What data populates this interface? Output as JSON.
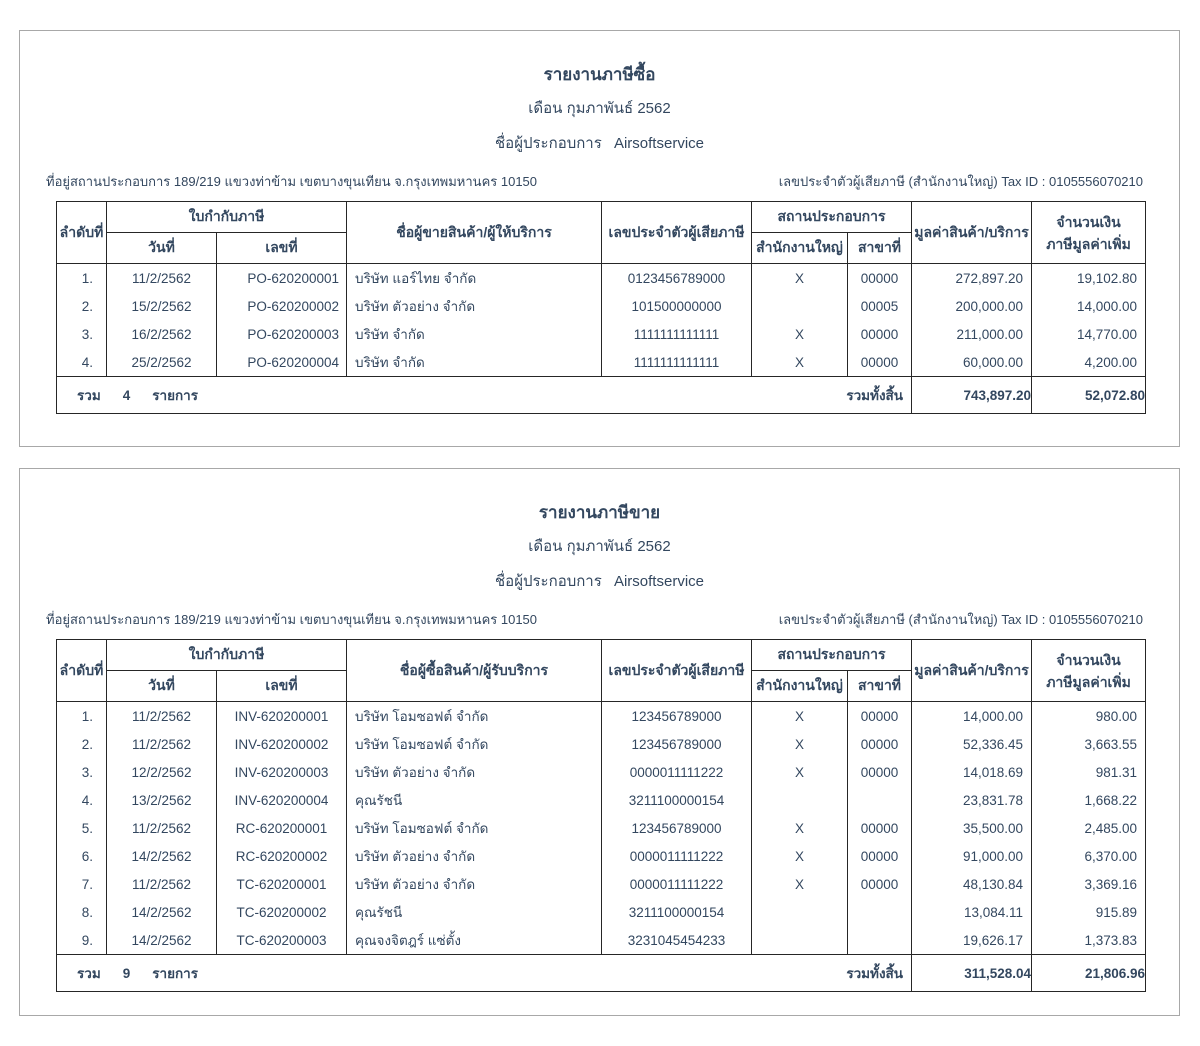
{
  "colors": {
    "text": "#33475f",
    "table_border": "#262626",
    "panel_border": "#a8a8a8",
    "background": "#ffffff"
  },
  "reports": [
    {
      "title": "รายงานภาษีซื้อ",
      "subtitle": "เดือน กุมภาพันธ์ 2562",
      "operator_label": "ชื่อผู้ประกอบการ",
      "operator_name": "Airsoftservice",
      "address": "ที่อยู่สถานประกอบการ 189/219  แขวงท่าข้าม เขตบางขุนเทียน จ.กรุงเทพมหานคร 10150",
      "tax_id_line": "เลขประจำตัวผู้เสียภาษี  (สำนักงานใหญ่) Tax ID : 0105556070210",
      "headers": {
        "no": "ลำดับที่",
        "invoice_group": "ใบกำกับภาษี",
        "date": "วันที่",
        "number": "เลขที่",
        "name": "ชื่อผู้ขายสินค้า/ผู้ให้บริการ",
        "tax_id": "เลขประจำตัวผู้เสียภาษี",
        "establishment_group": "สถานประกอบการ",
        "head_office": "สำนักงานใหญ่",
        "branch": "สาขาที่",
        "value": "มูลค่าสินค้า/บริการ",
        "vat_line1": "จำนวนเงิน",
        "vat_line2": "ภาษีมูลค่าเพิ่ม"
      },
      "rows": [
        {
          "no": "1.",
          "date": "11/2/2562",
          "number": "PO-620200001",
          "name": "บริษัท แอร์ไทย จำกัด",
          "tax_id": "0123456789000",
          "head_office": "X",
          "branch": "00000",
          "value": "272,897.20",
          "vat": "19,102.80"
        },
        {
          "no": "2.",
          "date": "15/2/2562",
          "number": "PO-620200002",
          "name": "บริษัท ตัวอย่าง จำกัด",
          "tax_id": "101500000000",
          "head_office": "",
          "branch": "00005",
          "value": "200,000.00",
          "vat": "14,000.00"
        },
        {
          "no": "3.",
          "date": "16/2/2562",
          "number": "PO-620200003",
          "name": "บริษัท จำกัด",
          "tax_id": "1111111111111",
          "head_office": "X",
          "branch": "00000",
          "value": "211,000.00",
          "vat": "14,770.00"
        },
        {
          "no": "4.",
          "date": "25/2/2562",
          "number": "PO-620200004",
          "name": "บริษัท จำกัด",
          "tax_id": "1111111111111",
          "head_office": "X",
          "branch": "00000",
          "value": "60,000.00",
          "vat": "4,200.00"
        }
      ],
      "summary": {
        "total_label": "รวม",
        "total_count": "4",
        "items_label": "รายการ",
        "grand_total_label": "รวมทั้งสิ้น",
        "total_value": "743,897.20",
        "total_vat": "52,072.80"
      }
    },
    {
      "title": "รายงานภาษีขาย",
      "subtitle": "เดือน กุมภาพันธ์ 2562",
      "operator_label": "ชื่อผู้ประกอบการ",
      "operator_name": "Airsoftservice",
      "address": "ที่อยู่สถานประกอบการ 189/219  แขวงท่าข้าม เขตบางขุนเทียน จ.กรุงเทพมหานคร 10150",
      "tax_id_line": "เลขประจำตัวผู้เสียภาษี  (สำนักงานใหญ่) Tax ID : 0105556070210",
      "headers": {
        "no": "ลำดับที่",
        "invoice_group": "ใบกำกับภาษี",
        "date": "วันที่",
        "number": "เลขที่",
        "name": "ชื่อผู้ซื้อสินค้า/ผู้รับบริการ",
        "tax_id": "เลขประจำตัวผู้เสียภาษี",
        "establishment_group": "สถานประกอบการ",
        "head_office": "สำนักงานใหญ่",
        "branch": "สาขาที่",
        "value": "มูลค่าสินค้า/บริการ",
        "vat_line1": "จำนวนเงิน",
        "vat_line2": "ภาษีมูลค่าเพิ่ม"
      },
      "rows": [
        {
          "no": "1.",
          "date": "11/2/2562",
          "number": "INV-620200001",
          "name": "บริษัท โอมซอฟต์ จำกัด",
          "tax_id": "123456789000",
          "head_office": "X",
          "branch": "00000",
          "value": "14,000.00",
          "vat": "980.00"
        },
        {
          "no": "2.",
          "date": "11/2/2562",
          "number": "INV-620200002",
          "name": "บริษัท โอมซอฟต์ จำกัด",
          "tax_id": "123456789000",
          "head_office": "X",
          "branch": "00000",
          "value": "52,336.45",
          "vat": "3,663.55"
        },
        {
          "no": "3.",
          "date": "12/2/2562",
          "number": "INV-620200003",
          "name": "บริษัท ตัวอย่าง จำกัด",
          "tax_id": "0000011111222",
          "head_office": "X",
          "branch": "00000",
          "value": "14,018.69",
          "vat": "981.31"
        },
        {
          "no": "4.",
          "date": "13/2/2562",
          "number": "INV-620200004",
          "name": "คุณรัชนี",
          "tax_id": "3211100000154",
          "head_office": "",
          "branch": "",
          "value": "23,831.78",
          "vat": "1,668.22"
        },
        {
          "no": "5.",
          "date": "11/2/2562",
          "number": "RC-620200001",
          "name": "บริษัท โอมซอฟต์ จำกัด",
          "tax_id": "123456789000",
          "head_office": "X",
          "branch": "00000",
          "value": "35,500.00",
          "vat": "2,485.00"
        },
        {
          "no": "6.",
          "date": "14/2/2562",
          "number": "RC-620200002",
          "name": "บริษัท ตัวอย่าง จำกัด",
          "tax_id": "0000011111222",
          "head_office": "X",
          "branch": "00000",
          "value": "91,000.00",
          "vat": "6,370.00"
        },
        {
          "no": "7.",
          "date": "11/2/2562",
          "number": "TC-620200001",
          "name": "บริษัท ตัวอย่าง จำกัด",
          "tax_id": "0000011111222",
          "head_office": "X",
          "branch": "00000",
          "value": "48,130.84",
          "vat": "3,369.16"
        },
        {
          "no": "8.",
          "date": "14/2/2562",
          "number": "TC-620200002",
          "name": "คุณรัชนี",
          "tax_id": "3211100000154",
          "head_office": "",
          "branch": "",
          "value": "13,084.11",
          "vat": "915.89"
        },
        {
          "no": "9.",
          "date": "14/2/2562",
          "number": "TC-620200003",
          "name": "คุณจงจิตฎร์  แซ่ตั้ง",
          "tax_id": "3231045454233",
          "head_office": "",
          "branch": "",
          "value": "19,626.17",
          "vat": "1,373.83"
        }
      ],
      "summary": {
        "total_label": "รวม",
        "total_count": "9",
        "items_label": "รายการ",
        "grand_total_label": "รวมทั้งสิ้น",
        "total_value": "311,528.04",
        "total_vat": "21,806.96"
      }
    }
  ]
}
